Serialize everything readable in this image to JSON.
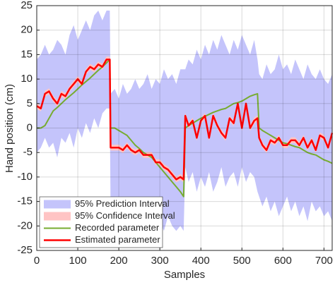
{
  "chart_data": {
    "type": "line",
    "xlabel": "Samples",
    "ylabel": "Hand position (cm)",
    "xlim": [
      0,
      720
    ],
    "ylim": [
      -25,
      25
    ],
    "xticks": [
      0,
      100,
      200,
      300,
      400,
      500,
      600,
      700
    ],
    "yticks": [
      -25,
      -20,
      -15,
      -10,
      -5,
      0,
      5,
      10,
      15,
      20,
      25
    ],
    "grid": true,
    "legend": "lower left",
    "x": [
      0,
      10,
      20,
      30,
      40,
      50,
      60,
      70,
      80,
      90,
      100,
      110,
      120,
      130,
      140,
      150,
      160,
      170,
      178,
      180,
      190,
      200,
      210,
      220,
      230,
      240,
      250,
      260,
      270,
      280,
      290,
      300,
      310,
      320,
      330,
      340,
      350,
      358,
      362,
      370,
      380,
      390,
      400,
      410,
      420,
      430,
      440,
      450,
      460,
      470,
      480,
      490,
      500,
      510,
      520,
      530,
      538,
      542,
      550,
      560,
      570,
      580,
      590,
      600,
      610,
      620,
      630,
      640,
      650,
      660,
      670,
      680,
      690,
      700,
      710,
      720
    ],
    "series": [
      {
        "name": "95% Prediction Interval",
        "kind": "band",
        "color": "#c4c4fb",
        "upper": [
          14,
          15,
          17,
          15,
          16,
          18,
          17,
          15,
          19,
          21,
          18,
          20,
          22,
          20,
          23,
          24,
          22,
          24,
          24,
          7,
          8,
          6,
          9,
          7,
          8,
          10,
          8,
          9,
          11,
          8,
          10,
          9,
          12,
          10,
          11,
          9,
          12,
          12,
          12,
          14,
          13,
          16,
          14,
          17,
          15,
          18,
          16,
          19,
          17,
          15,
          18,
          16,
          19,
          17,
          15,
          18,
          14,
          11,
          10,
          13,
          11,
          12,
          15,
          12,
          13,
          11,
          14,
          12,
          10,
          13,
          11,
          10,
          12,
          10,
          9,
          11
        ],
        "lower": [
          -5,
          -4,
          -2,
          -4,
          -3,
          -6,
          -2,
          -3,
          -1,
          -4,
          0,
          -2,
          1,
          -1,
          2,
          0,
          3,
          4,
          4,
          -17,
          -15,
          -17,
          -16,
          -18,
          -15,
          -17,
          -19,
          -16,
          -18,
          -20,
          -17,
          -19,
          -21,
          -18,
          -20,
          -21,
          -20,
          -21,
          -8,
          -11,
          -9,
          -13,
          -10,
          -12,
          -9,
          -13,
          -11,
          -8,
          -12,
          -10,
          -9,
          -12,
          -8,
          -11,
          -9,
          -10,
          -13,
          -14,
          -16,
          -14,
          -17,
          -15,
          -18,
          -16,
          -14,
          -17,
          -15,
          -18,
          -16,
          -19,
          -15,
          -17,
          -16,
          -18,
          -17,
          -19
        ]
      },
      {
        "name": "95% Confidence Interval",
        "kind": "band",
        "color": "#ffc4c4",
        "upper": [
          5.1,
          4.6,
          7.6,
          8.1,
          6.6,
          5.6,
          7.6,
          7.1,
          8.6,
          9.6,
          10.6,
          9.6,
          12.1,
          13.1,
          12.6,
          13.6,
          13.1,
          14.6,
          14.6,
          -3.4,
          -3.4,
          -3.4,
          -3.9,
          -2.9,
          -3.9,
          -4.4,
          -3.9,
          -4.9,
          -4.9,
          -4.9,
          -6.4,
          -6.4,
          -7.4,
          -7.9,
          -8.9,
          -9.9,
          -9.4,
          -9.9,
          3.1,
          1.1,
          2.1,
          -1.4,
          2.1,
          3.1,
          -1.4,
          3.1,
          1.1,
          -0.4,
          -1.4,
          2.6,
          1.6,
          5.6,
          0.6,
          5.6,
          0.6,
          2.1,
          2.6,
          -1.4,
          -2.9,
          -3.9,
          -1.9,
          -2.4,
          -1.4,
          -2.9,
          -2.9,
          -1.9,
          -1.9,
          -2.9,
          -1.4,
          -3.4,
          -1.9,
          -3.9,
          -0.9,
          -1.4,
          -3.4,
          -0.4
        ],
        "lower": [
          3.9,
          3.4,
          6.4,
          6.9,
          5.4,
          4.4,
          6.4,
          5.9,
          7.4,
          8.4,
          9.4,
          8.4,
          10.9,
          11.9,
          11.4,
          12.4,
          11.9,
          13.4,
          13.4,
          -4.6,
          -4.6,
          -4.6,
          -5.1,
          -4.1,
          -5.1,
          -5.6,
          -5.1,
          -6.1,
          -6.1,
          -6.1,
          -7.6,
          -7.6,
          -8.6,
          -9.1,
          -10.1,
          -11.1,
          -10.6,
          -11.1,
          1.9,
          -0.1,
          0.9,
          -2.6,
          0.9,
          1.9,
          -2.6,
          1.9,
          -0.1,
          -1.6,
          -2.6,
          1.4,
          0.4,
          4.4,
          -0.6,
          4.4,
          -0.6,
          0.9,
          1.4,
          -2.6,
          -4.1,
          -5.1,
          -3.1,
          -3.6,
          -2.6,
          -4.1,
          -4.1,
          -3.1,
          -3.1,
          -4.1,
          -2.6,
          -4.6,
          -3.1,
          -5.1,
          -2.1,
          -2.6,
          -4.6,
          -1.6
        ]
      },
      {
        "name": "Recorded parameter",
        "kind": "line",
        "color": "#77ac30",
        "width": 2,
        "values": [
          0,
          0,
          0.5,
          2,
          3.5,
          4.2,
          5,
          5.8,
          6.5,
          7.2,
          8,
          8.8,
          9.5,
          10.2,
          11,
          11.8,
          12.5,
          13.3,
          14,
          0,
          0,
          -0.5,
          -1,
          -1.5,
          -2.5,
          -3.5,
          -4.2,
          -5,
          -5.5,
          -6,
          -7,
          -8,
          -9,
          -10,
          -11,
          -12,
          -13,
          -14,
          0,
          0.5,
          1,
          1.5,
          2,
          2.4,
          2.8,
          3.2,
          3.5,
          3.8,
          4,
          4.5,
          5,
          5.2,
          5.5,
          6,
          6.5,
          6.8,
          7,
          0,
          -0.5,
          -1,
          -1.5,
          -2,
          -2.5,
          -3,
          -3.2,
          -3.5,
          -3.8,
          -4,
          -4.5,
          -5,
          -5.3,
          -5.5,
          -6,
          -6.5,
          -6.8,
          -7.2
        ]
      },
      {
        "name": "Estimated parameter",
        "kind": "line",
        "color": "#ff0000",
        "width": 2.5,
        "values": [
          4.5,
          4,
          7,
          7.5,
          6,
          5,
          7,
          6.5,
          8,
          9,
          10,
          9,
          11.5,
          12.5,
          12,
          13,
          12.5,
          14,
          14,
          -4,
          -4,
          -4,
          -4.5,
          -3.5,
          -4.5,
          -5,
          -4.5,
          -5.5,
          -5.5,
          -5.5,
          -7,
          -7,
          -8,
          -8.5,
          -9.5,
          -10.5,
          -10,
          -10.5,
          2.5,
          0.5,
          1.5,
          -2,
          1.5,
          2.5,
          -2,
          2.5,
          0.5,
          -1,
          -2,
          2,
          1,
          5,
          0,
          5,
          0,
          1.5,
          2,
          -2,
          -3.5,
          -4.5,
          -2.5,
          -3,
          -2,
          -3.5,
          -3.5,
          -2.5,
          -2.5,
          -3.5,
          -2,
          -4,
          -2.5,
          -4.5,
          -1.5,
          -2,
          -4,
          -1
        ]
      }
    ]
  }
}
